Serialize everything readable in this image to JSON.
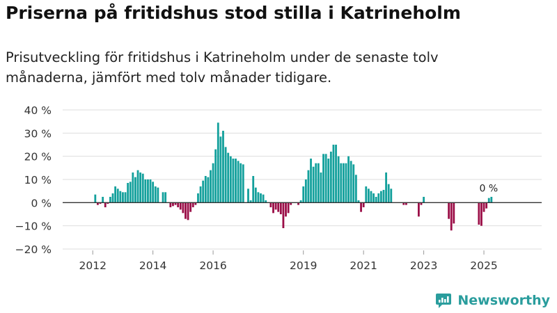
{
  "header": {
    "title": "Priserna på fritidshus stod stilla i Katrineholm",
    "subtitle": "Prisutveckling för fritidshus i Katrineholm under de senaste tolv månaderna, jämfört med tolv månader tidigare."
  },
  "brand": {
    "name": "Newsworthy"
  },
  "colors": {
    "positive": "#13a09c",
    "negative": "#9b0e47",
    "grid": "#dddddd",
    "zero_line": "#333333",
    "text": "#333333",
    "brand": "#2a9d9d"
  },
  "chart_data": {
    "type": "bar",
    "title": "Priserna på fritidshus stod stilla i Katrineholm",
    "xlabel": "",
    "ylabel": "",
    "unit": "%",
    "ylim": [
      -20,
      40
    ],
    "y_ticks": [
      40,
      30,
      20,
      10,
      0,
      -10,
      -20
    ],
    "y_tick_labels": [
      "40 %",
      "30 %",
      "20 %",
      "10 %",
      "0 %",
      "−10 %",
      "−20 %"
    ],
    "x_ticks": [
      2012,
      2014,
      2016,
      2019,
      2021,
      2023,
      2025
    ],
    "x_tick_labels": [
      "2012",
      "2014",
      "2016",
      "2019",
      "2021",
      "2023",
      "2025"
    ],
    "x_start": 2011.0,
    "x_end": 2026.92,
    "start_year": 2011,
    "start_month": 11,
    "values": [
      0,
      0,
      0,
      3.5,
      -1,
      -0.5,
      2.5,
      -2,
      -0.5,
      2.5,
      4,
      7,
      6,
      5,
      4.5,
      4.5,
      8.5,
      9,
      13,
      11,
      14,
      13,
      12.5,
      10,
      10,
      10,
      9,
      7,
      6.5,
      0,
      4.5,
      4.5,
      0,
      -2,
      -1.5,
      -1,
      -2,
      -3,
      -4.5,
      -7,
      -7.5,
      -4,
      -2,
      -1,
      4,
      7,
      9.5,
      11.5,
      11,
      14,
      17,
      23,
      34.5,
      28.5,
      31,
      24,
      21.5,
      20,
      19,
      19,
      18,
      17,
      16.5,
      0,
      6,
      1,
      11.5,
      6.5,
      4.5,
      4,
      3.5,
      1,
      0,
      -2,
      -4.5,
      -3,
      -4,
      -5,
      -11,
      -6,
      -4.5,
      -1,
      0,
      0,
      -1,
      1,
      7,
      10,
      14,
      19,
      15.5,
      17,
      17,
      13,
      21,
      21,
      19,
      22,
      25,
      25,
      20,
      17,
      17,
      17,
      20,
      18,
      16.5,
      12,
      1,
      -4,
      -2,
      7,
      6,
      5,
      4,
      2.5,
      4,
      5,
      5.5,
      13,
      8,
      6,
      0,
      0,
      0,
      0,
      -1,
      -1,
      0,
      0,
      0,
      0,
      -6,
      -1,
      2.5,
      0,
      0,
      0,
      0,
      0,
      0,
      0,
      0,
      0,
      -7,
      -12,
      -9,
      0,
      0,
      0,
      0,
      0,
      0,
      0,
      0,
      0,
      -9.5,
      -10,
      -4,
      -2.5,
      2,
      2.5
    ],
    "annotation": {
      "text": "0 %"
    }
  }
}
